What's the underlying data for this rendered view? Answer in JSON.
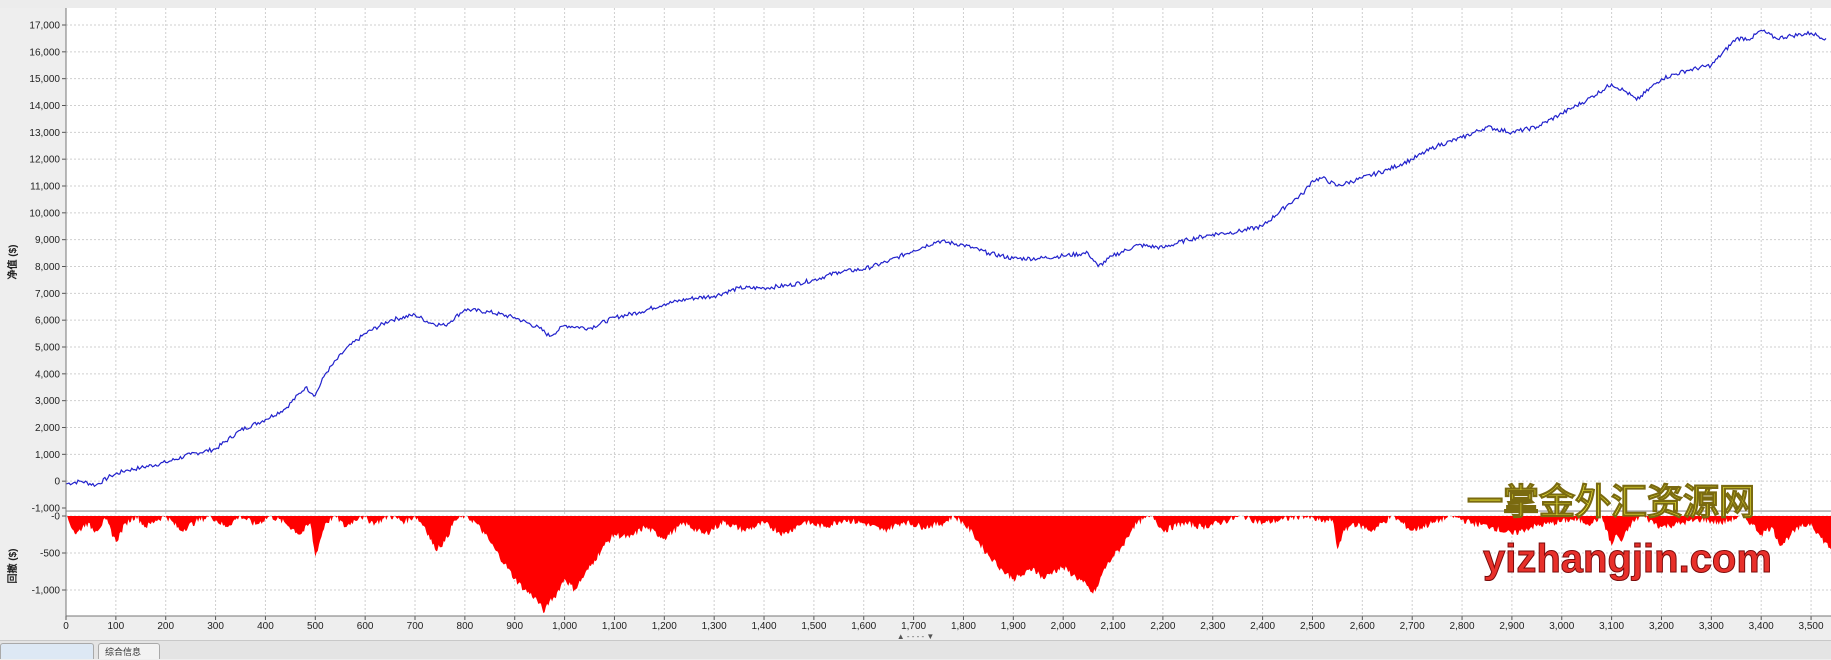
{
  "tabs": [
    {
      "label": ""
    },
    {
      "label": "综合信息"
    }
  ],
  "watermark": {
    "line1": "一掌金外汇资源网",
    "line2": "yizhangjin.com",
    "line1_color": "#f4f03a",
    "line2_color": "#e8302a"
  },
  "splitter_glyphs": "▲ - - - - ▼",
  "colors": {
    "equity_line": "#2222cc",
    "drawdown_fill": "#ff0000",
    "grid": "#cfcfcf"
  },
  "chart_data": [
    {
      "type": "line",
      "ylabel": "净值 ($)",
      "xlim": [
        0,
        3540
      ],
      "ylim": [
        -1000,
        17500
      ],
      "y_ticks": [
        "-1,000",
        "0",
        "1,000",
        "2,000",
        "3,000",
        "4,000",
        "5,000",
        "6,000",
        "7,000",
        "8,000",
        "9,000",
        "10,000",
        "11,000",
        "12,000",
        "13,000",
        "14,000",
        "15,000",
        "16,000",
        "17,000"
      ],
      "grid": true,
      "series": [
        {
          "x": [
            0,
            30,
            60,
            90,
            120,
            150,
            200,
            250,
            300,
            350,
            400,
            440,
            480,
            500,
            520,
            560,
            600,
            650,
            700,
            730,
            760,
            800,
            850,
            900,
            950,
            970,
            1000,
            1050,
            1100,
            1150,
            1200,
            1250,
            1300,
            1350,
            1400,
            1450,
            1500,
            1550,
            1600,
            1650,
            1700,
            1750,
            1800,
            1850,
            1900,
            1950,
            2000,
            2050,
            2070,
            2100,
            2150,
            2200,
            2250,
            2300,
            2350,
            2400,
            2450,
            2480,
            2500,
            2520,
            2550,
            2600,
            2650,
            2700,
            2750,
            2800,
            2850,
            2900,
            2950,
            3000,
            3050,
            3100,
            3130,
            3150,
            3200,
            3250,
            3300,
            3350,
            3380,
            3400,
            3430,
            3460,
            3500,
            3530
          ],
          "y": [
            -100,
            0,
            -150,
            200,
            400,
            500,
            700,
            1000,
            1200,
            1900,
            2300,
            2700,
            3500,
            3200,
            4000,
            4900,
            5500,
            6000,
            6200,
            5900,
            5800,
            6400,
            6300,
            6100,
            5700,
            5400,
            5800,
            5700,
            6100,
            6300,
            6600,
            6800,
            6900,
            7200,
            7200,
            7300,
            7500,
            7800,
            7900,
            8200,
            8600,
            8950,
            8800,
            8500,
            8300,
            8300,
            8400,
            8500,
            8000,
            8400,
            8800,
            8700,
            9000,
            9200,
            9300,
            9500,
            10300,
            10700,
            11200,
            11300,
            11000,
            11300,
            11600,
            12000,
            12500,
            12800,
            13200,
            13000,
            13200,
            13700,
            14200,
            14800,
            14500,
            14200,
            15000,
            15300,
            15500,
            16500,
            16500,
            16800,
            16500,
            16600,
            16700,
            16500
          ]
        }
      ]
    },
    {
      "type": "area",
      "ylabel": "回撤 ($)",
      "xlim": [
        0,
        3540
      ],
      "ylim": [
        -1400,
        0
      ],
      "y_ticks": [
        "-0",
        "-500",
        "-1,000"
      ],
      "x_ticks": [
        "0",
        "100",
        "200",
        "300",
        "400",
        "500",
        "600",
        "700",
        "800",
        "900",
        "1,000",
        "1,100",
        "1,200",
        "1,300",
        "1,400",
        "1,500",
        "1,600",
        "1,700",
        "1,800",
        "1,900",
        "2,000",
        "2,100",
        "2,200",
        "2,300",
        "2,400",
        "2,500",
        "2,600",
        "2,700",
        "2,800",
        "2,900",
        "3,000",
        "3,100",
        "3,200",
        "3,300",
        "3,400",
        "3,500"
      ],
      "grid": true,
      "series": [
        {
          "x": [
            0,
            20,
            40,
            60,
            80,
            100,
            120,
            140,
            160,
            180,
            200,
            230,
            260,
            290,
            320,
            350,
            380,
            410,
            440,
            470,
            490,
            500,
            520,
            540,
            560,
            590,
            620,
            650,
            680,
            700,
            720,
            740,
            760,
            780,
            800,
            820,
            840,
            860,
            880,
            900,
            920,
            940,
            960,
            970,
            980,
            1000,
            1020,
            1040,
            1060,
            1080,
            1100,
            1130,
            1160,
            1200,
            1240,
            1280,
            1320,
            1360,
            1400,
            1440,
            1480,
            1520,
            1560,
            1600,
            1640,
            1680,
            1720,
            1760,
            1780,
            1800,
            1820,
            1840,
            1860,
            1880,
            1900,
            1920,
            1940,
            1960,
            1980,
            2000,
            2020,
            2040,
            2060,
            2070,
            2080,
            2100,
            2120,
            2140,
            2160,
            2180,
            2200,
            2240,
            2280,
            2320,
            2360,
            2400,
            2440,
            2480,
            2520,
            2540,
            2550,
            2560,
            2580,
            2620,
            2660,
            2700,
            2740,
            2780,
            2820,
            2860,
            2900,
            2940,
            2980,
            3020,
            3060,
            3080,
            3100,
            3110,
            3120,
            3140,
            3160,
            3200,
            3240,
            3280,
            3320,
            3360,
            3380,
            3400,
            3420,
            3440,
            3460,
            3480,
            3500,
            3520,
            3540
          ],
          "y": [
            0,
            -250,
            -100,
            -200,
            -50,
            -350,
            -100,
            0,
            -150,
            -60,
            0,
            -200,
            -80,
            0,
            -150,
            0,
            -120,
            0,
            -100,
            -250,
            -100,
            -550,
            -100,
            0,
            -150,
            0,
            -100,
            0,
            -80,
            0,
            -150,
            -450,
            -350,
            -60,
            0,
            -80,
            -250,
            -450,
            -650,
            -850,
            -1000,
            -1100,
            -1300,
            -1150,
            -1100,
            -850,
            -1000,
            -800,
            -600,
            -400,
            -250,
            -300,
            -150,
            -300,
            -100,
            -250,
            -80,
            -200,
            -100,
            -250,
            -80,
            -150,
            -50,
            -100,
            -200,
            -80,
            -150,
            -100,
            0,
            -100,
            -250,
            -450,
            -600,
            -750,
            -850,
            -800,
            -700,
            -850,
            -750,
            -700,
            -800,
            -900,
            -1050,
            -950,
            -750,
            -550,
            -400,
            -150,
            -50,
            0,
            -200,
            -100,
            -150,
            -80,
            0,
            -100,
            -50,
            0,
            -80,
            -50,
            -450,
            -250,
            -100,
            -200,
            0,
            -200,
            -100,
            0,
            -100,
            -150,
            -250,
            -150,
            -100,
            -50,
            -100,
            0,
            -400,
            -250,
            -350,
            -100,
            0,
            -150,
            -100,
            -50,
            -100,
            0,
            -100,
            -250,
            -150,
            -400,
            -250,
            -150,
            -100,
            -300,
            -450
          ]
        }
      ]
    }
  ]
}
